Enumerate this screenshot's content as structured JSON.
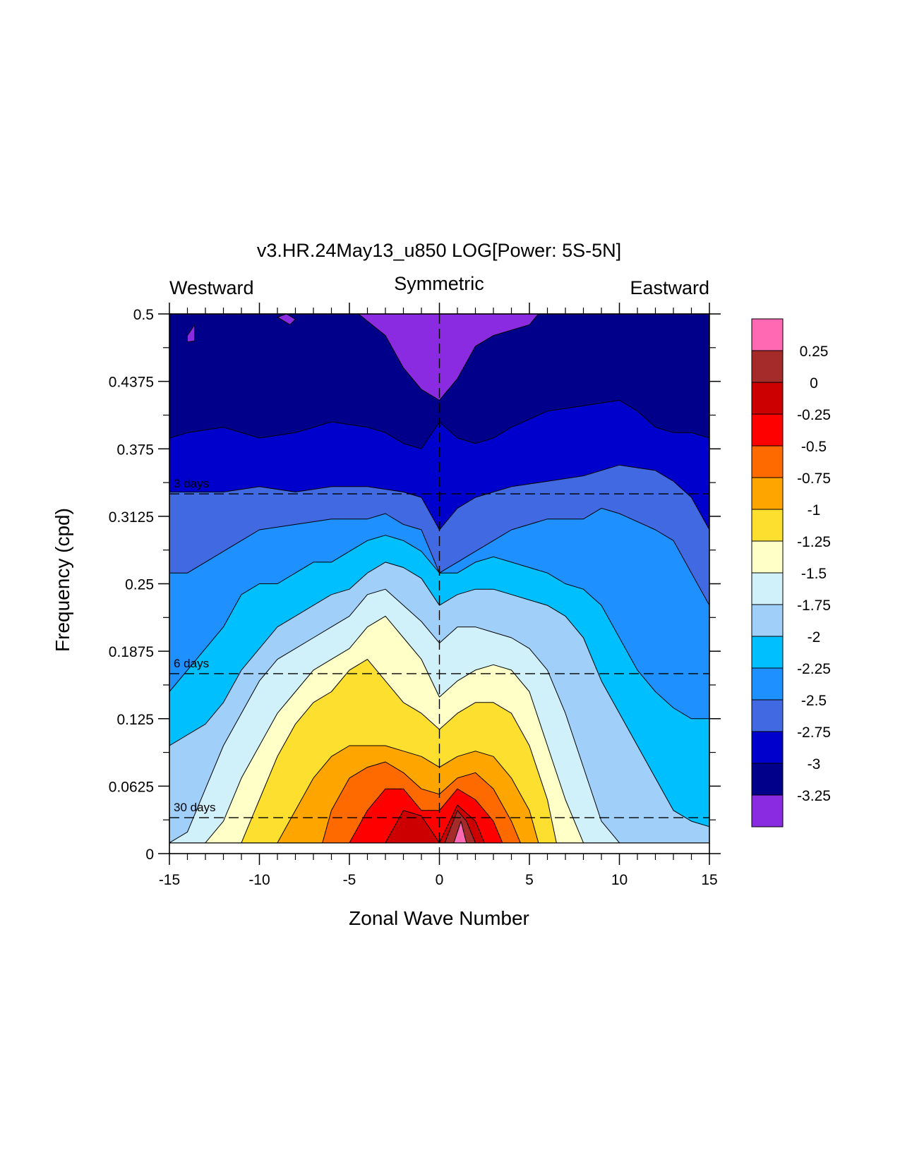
{
  "chart_data": {
    "type": "heatmap",
    "subtype": "filled-contour",
    "title": "v3.HR.24May13_u850 LOG[Power: 5S-5N]",
    "direction_labels": {
      "left": "Westward",
      "center": "Symmetric",
      "right": "Eastward"
    },
    "xlabel": "Zonal Wave Number",
    "ylabel": "Frequency (cpd)",
    "xlim": [
      -15,
      15
    ],
    "ylim": [
      0,
      0.5
    ],
    "x_ticks": [
      "-15",
      "-10",
      "-5",
      "0",
      "5",
      "10",
      "15"
    ],
    "y_ticks": [
      "0",
      "0.0625",
      "0.125",
      "0.1875",
      "0.25",
      "0.3125",
      "0.375",
      "0.4375",
      "0.5"
    ],
    "period_lines": [
      {
        "label": "3 days",
        "frequency": 0.3333
      },
      {
        "label": "6 days",
        "frequency": 0.1667
      },
      {
        "label": "30 days",
        "frequency": 0.0333
      }
    ],
    "grid": false,
    "legend": "colorbar-right",
    "levels": [
      "0.25",
      "0",
      "-0.25",
      "-0.5",
      "-0.75",
      "-1",
      "-1.25",
      "-1.5",
      "-1.75",
      "-2",
      "-2.25",
      "-2.5",
      "-2.75",
      "-3",
      "-3.25"
    ],
    "colors": [
      "#ff69b4",
      "#a52a2a",
      "#cc0000",
      "#ff0000",
      "#ff6a00",
      "#ffa500",
      "#fddf30",
      "#ffffc8",
      "#d0f0fa",
      "#a0d0fa",
      "#00bfff",
      "#1e90ff",
      "#4169e1",
      "#0000cd",
      "#00008b",
      "#8a2be2"
    ],
    "contours": [
      {
        "level": -3.0,
        "points": [
          [
            -15,
            0.385
          ],
          [
            -14,
            0.39
          ],
          [
            -12,
            0.395
          ],
          [
            -10,
            0.385
          ],
          [
            -8,
            0.39
          ],
          [
            -6,
            0.4
          ],
          [
            -4,
            0.395
          ],
          [
            -3,
            0.39
          ],
          [
            -2,
            0.38
          ],
          [
            -1,
            0.375
          ],
          [
            0,
            0.4
          ],
          [
            1,
            0.385
          ],
          [
            2,
            0.38
          ],
          [
            3,
            0.385
          ],
          [
            4,
            0.395
          ],
          [
            6,
            0.41
          ],
          [
            8,
            0.415
          ],
          [
            10,
            0.42
          ],
          [
            11,
            0.41
          ],
          [
            12,
            0.395
          ],
          [
            13,
            0.39
          ],
          [
            14,
            0.39
          ],
          [
            15,
            0.385
          ]
        ]
      },
      {
        "level": -2.75,
        "points": [
          [
            -15,
            0.335
          ],
          [
            -14,
            0.335
          ],
          [
            -12,
            0.335
          ],
          [
            -10,
            0.34
          ],
          [
            -8,
            0.335
          ],
          [
            -6,
            0.34
          ],
          [
            -4,
            0.34
          ],
          [
            -2,
            0.335
          ],
          [
            -1,
            0.33
          ],
          [
            0,
            0.3
          ],
          [
            1,
            0.32
          ],
          [
            2,
            0.33
          ],
          [
            3,
            0.335
          ],
          [
            4,
            0.34
          ],
          [
            6,
            0.345
          ],
          [
            8,
            0.35
          ],
          [
            10,
            0.36
          ],
          [
            12,
            0.355
          ],
          [
            13,
            0.345
          ],
          [
            14,
            0.33
          ],
          [
            15,
            0.3
          ]
        ]
      },
      {
        "level": -2.5,
        "points": [
          [
            -15,
            0.26
          ],
          [
            -14,
            0.26
          ],
          [
            -13,
            0.27
          ],
          [
            -12,
            0.28
          ],
          [
            -10,
            0.3
          ],
          [
            -8,
            0.305
          ],
          [
            -6,
            0.31
          ],
          [
            -4,
            0.31
          ],
          [
            -3,
            0.315
          ],
          [
            -2,
            0.305
          ],
          [
            -1,
            0.3
          ],
          [
            0,
            0.26
          ],
          [
            1,
            0.27
          ],
          [
            2,
            0.28
          ],
          [
            4,
            0.3
          ],
          [
            6,
            0.31
          ],
          [
            8,
            0.31
          ],
          [
            9,
            0.32
          ],
          [
            10,
            0.315
          ],
          [
            12,
            0.3
          ],
          [
            13,
            0.29
          ],
          [
            14,
            0.26
          ],
          [
            15,
            0.23
          ]
        ]
      },
      {
        "level": -2.25,
        "points": [
          [
            -15,
            0.15
          ],
          [
            -14,
            0.17
          ],
          [
            -13,
            0.19
          ],
          [
            -12,
            0.21
          ],
          [
            -11,
            0.24
          ],
          [
            -10,
            0.25
          ],
          [
            -9,
            0.25
          ],
          [
            -8,
            0.26
          ],
          [
            -7,
            0.27
          ],
          [
            -6,
            0.27
          ],
          [
            -5,
            0.28
          ],
          [
            -4,
            0.29
          ],
          [
            -3,
            0.295
          ],
          [
            -2,
            0.29
          ],
          [
            -1,
            0.28
          ],
          [
            0,
            0.26
          ],
          [
            1,
            0.26
          ],
          [
            2,
            0.27
          ],
          [
            3,
            0.275
          ],
          [
            4,
            0.27
          ],
          [
            6,
            0.26
          ],
          [
            7,
            0.25
          ],
          [
            8,
            0.245
          ],
          [
            9,
            0.23
          ],
          [
            10,
            0.2
          ],
          [
            11,
            0.17
          ],
          [
            12,
            0.15
          ],
          [
            13,
            0.135
          ],
          [
            14,
            0.125
          ],
          [
            15,
            0.125
          ]
        ]
      },
      {
        "level": -2.0,
        "points": [
          [
            -15,
            0.1
          ],
          [
            -13,
            0.12
          ],
          [
            -12,
            0.14
          ],
          [
            -11,
            0.17
          ],
          [
            -10,
            0.19
          ],
          [
            -9,
            0.21
          ],
          [
            -8,
            0.22
          ],
          [
            -7,
            0.23
          ],
          [
            -6,
            0.24
          ],
          [
            -5,
            0.245
          ],
          [
            -4,
            0.26
          ],
          [
            -3,
            0.27
          ],
          [
            -2,
            0.265
          ],
          [
            -1,
            0.255
          ],
          [
            0,
            0.23
          ],
          [
            1,
            0.24
          ],
          [
            2,
            0.245
          ],
          [
            3,
            0.245
          ],
          [
            4,
            0.24
          ],
          [
            5,
            0.235
          ],
          [
            6,
            0.23
          ],
          [
            7,
            0.22
          ],
          [
            8,
            0.2
          ],
          [
            9,
            0.16
          ],
          [
            10,
            0.13
          ],
          [
            11,
            0.1
          ],
          [
            12,
            0.07
          ],
          [
            13,
            0.04
          ],
          [
            14,
            0.03
          ],
          [
            15,
            0.025
          ]
        ]
      },
      {
        "level": -1.75,
        "points": [
          [
            -15,
            0.01
          ],
          [
            -14,
            0.02
          ],
          [
            -13,
            0.06
          ],
          [
            -12,
            0.1
          ],
          [
            -11,
            0.13
          ],
          [
            -10,
            0.16
          ],
          [
            -9,
            0.18
          ],
          [
            -8,
            0.19
          ],
          [
            -7,
            0.2
          ],
          [
            -6,
            0.21
          ],
          [
            -5,
            0.22
          ],
          [
            -4,
            0.24
          ],
          [
            -3,
            0.245
          ],
          [
            -2,
            0.23
          ],
          [
            -1,
            0.215
          ],
          [
            0,
            0.195
          ],
          [
            1,
            0.21
          ],
          [
            2,
            0.21
          ],
          [
            3,
            0.205
          ],
          [
            4,
            0.2
          ],
          [
            5,
            0.19
          ],
          [
            6,
            0.17
          ],
          [
            7,
            0.13
          ],
          [
            8,
            0.08
          ],
          [
            9,
            0.03
          ],
          [
            10,
            0.01
          ]
        ]
      },
      {
        "level": -1.5,
        "points": [
          [
            -13,
            0.01
          ],
          [
            -12,
            0.03
          ],
          [
            -11,
            0.07
          ],
          [
            -10,
            0.1
          ],
          [
            -9,
            0.13
          ],
          [
            -8,
            0.15
          ],
          [
            -7,
            0.17
          ],
          [
            -6,
            0.18
          ],
          [
            -5,
            0.19
          ],
          [
            -4,
            0.21
          ],
          [
            -3,
            0.22
          ],
          [
            -2,
            0.2
          ],
          [
            -1,
            0.18
          ],
          [
            0,
            0.145
          ],
          [
            1,
            0.16
          ],
          [
            2,
            0.17
          ],
          [
            3,
            0.175
          ],
          [
            4,
            0.17
          ],
          [
            5,
            0.15
          ],
          [
            6,
            0.1
          ],
          [
            7,
            0.05
          ],
          [
            8,
            0.01
          ]
        ]
      },
      {
        "level": -1.25,
        "points": [
          [
            -11,
            0.01
          ],
          [
            -10,
            0.05
          ],
          [
            -9,
            0.09
          ],
          [
            -8,
            0.12
          ],
          [
            -7,
            0.14
          ],
          [
            -6,
            0.15
          ],
          [
            -5,
            0.17
          ],
          [
            -4,
            0.18
          ],
          [
            -3,
            0.16
          ],
          [
            -2,
            0.14
          ],
          [
            -1,
            0.13
          ],
          [
            0,
            0.115
          ],
          [
            1,
            0.13
          ],
          [
            2,
            0.14
          ],
          [
            3,
            0.14
          ],
          [
            4,
            0.13
          ],
          [
            5,
            0.1
          ],
          [
            6,
            0.05
          ],
          [
            6.5,
            0.01
          ]
        ]
      },
      {
        "level": -1.0,
        "points": [
          [
            -9,
            0.01
          ],
          [
            -8,
            0.04
          ],
          [
            -7,
            0.07
          ],
          [
            -6,
            0.09
          ],
          [
            -5,
            0.1
          ],
          [
            -4,
            0.1
          ],
          [
            -3,
            0.1
          ],
          [
            -2,
            0.095
          ],
          [
            -1,
            0.09
          ],
          [
            0,
            0.08
          ],
          [
            1,
            0.09
          ],
          [
            2,
            0.095
          ],
          [
            3,
            0.09
          ],
          [
            4,
            0.07
          ],
          [
            5,
            0.04
          ],
          [
            5.5,
            0.01
          ]
        ]
      },
      {
        "level": -0.75,
        "points": [
          [
            -6.5,
            0.01
          ],
          [
            -6,
            0.04
          ],
          [
            -5,
            0.07
          ],
          [
            -4,
            0.08
          ],
          [
            -3,
            0.085
          ],
          [
            -2,
            0.075
          ],
          [
            -1,
            0.06
          ],
          [
            0,
            0.055
          ],
          [
            1,
            0.07
          ],
          [
            2,
            0.075
          ],
          [
            3,
            0.06
          ],
          [
            4,
            0.03
          ],
          [
            4.5,
            0.01
          ]
        ]
      },
      {
        "level": -0.5,
        "points": [
          [
            -5,
            0.01
          ],
          [
            -4,
            0.04
          ],
          [
            -3,
            0.06
          ],
          [
            -2,
            0.06
          ],
          [
            -1,
            0.04
          ],
          [
            0,
            0.04
          ],
          [
            1,
            0.06
          ],
          [
            2,
            0.05
          ],
          [
            3,
            0.03
          ],
          [
            3.5,
            0.01
          ]
        ]
      },
      {
        "level": -0.25,
        "points": [
          [
            -3,
            0.01
          ],
          [
            -2,
            0.04
          ],
          [
            -1,
            0.035
          ],
          [
            0,
            0.01
          ],
          [
            1,
            0.045
          ],
          [
            2,
            0.03
          ],
          [
            2.5,
            0.01
          ]
        ]
      },
      {
        "level": 0.0,
        "points": [
          [
            0.3,
            0.01
          ],
          [
            1,
            0.04
          ],
          [
            1.5,
            0.03
          ],
          [
            2,
            0.01
          ]
        ]
      },
      {
        "level": 0.25,
        "points": [
          [
            0.8,
            0.01
          ],
          [
            1.2,
            0.03
          ],
          [
            1.5,
            0.01
          ]
        ]
      }
    ],
    "patches": [
      {
        "color": "#8a2be2",
        "points": [
          [
            -4.5,
            0.5
          ],
          [
            -3,
            0.48
          ],
          [
            -2,
            0.45
          ],
          [
            -1,
            0.43
          ],
          [
            0,
            0.42
          ],
          [
            1,
            0.44
          ],
          [
            2,
            0.47
          ],
          [
            3,
            0.48
          ],
          [
            5,
            0.49
          ],
          [
            5.5,
            0.5
          ]
        ]
      },
      {
        "color": "#8a2be2",
        "points": [
          [
            -8.5,
            0.5
          ],
          [
            -8,
            0.495
          ],
          [
            -8.3,
            0.49
          ],
          [
            -9,
            0.497
          ]
        ]
      },
      {
        "color": "#8a2be2",
        "points": [
          [
            -14,
            0.48
          ],
          [
            -13.6,
            0.49
          ],
          [
            -13.6,
            0.475
          ],
          [
            -14,
            0.474
          ]
        ]
      }
    ]
  }
}
